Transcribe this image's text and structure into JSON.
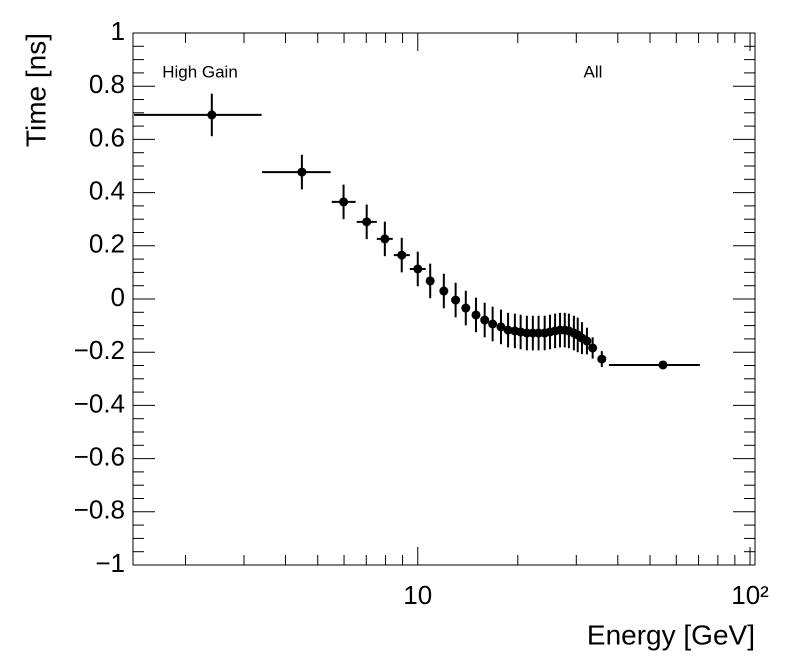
{
  "chart_data": {
    "type": "scatter",
    "xlabel": "Energy [GeV]",
    "ylabel": "Time [ns]",
    "annotations": [
      {
        "text": "High Gain"
      },
      {
        "text": "All"
      }
    ],
    "log_x": true,
    "color": "#000000",
    "x": [
      2.4,
      4.48,
      5.98,
      7.02,
      7.96,
      8.95,
      10.0,
      10.9,
      11.98,
      13.0,
      13.95,
      14.97,
      15.9,
      16.8,
      17.8,
      18.7,
      19.6,
      20.4,
      21.3,
      22.2,
      23.1,
      24.1,
      25.0,
      25.9,
      26.8,
      27.7,
      28.5,
      29.5,
      30.3,
      31.2,
      32.3,
      33.6,
      35.8,
      54.7
    ],
    "x_low": [
      1.4,
      3.4,
      5.51,
      6.55,
      7.53,
      8.47,
      9.46,
      null,
      null,
      null,
      null,
      null,
      null,
      null,
      null,
      null,
      null,
      null,
      null,
      null,
      null,
      null,
      null,
      null,
      null,
      null,
      null,
      null,
      null,
      null,
      null,
      null,
      null,
      37.6
    ],
    "x_high": [
      3.39,
      5.47,
      6.5,
      7.53,
      8.41,
      9.46,
      10.57,
      null,
      null,
      null,
      null,
      null,
      null,
      null,
      null,
      null,
      null,
      null,
      null,
      null,
      null,
      null,
      null,
      null,
      null,
      null,
      null,
      null,
      null,
      null,
      null,
      null,
      null,
      70.6
    ],
    "values": [
      0.692,
      0.477,
      0.365,
      0.29,
      0.226,
      0.165,
      0.113,
      0.068,
      0.03,
      -0.004,
      -0.034,
      -0.06,
      -0.079,
      -0.094,
      -0.105,
      -0.117,
      -0.12,
      -0.124,
      -0.128,
      -0.128,
      -0.128,
      -0.128,
      -0.124,
      -0.12,
      -0.117,
      -0.117,
      -0.12,
      -0.128,
      -0.135,
      -0.147,
      -0.158,
      -0.184,
      -0.226,
      -0.248
    ],
    "yerr": [
      0.08,
      0.065,
      0.065,
      0.065,
      0.065,
      0.065,
      0.065,
      0.065,
      0.065,
      0.065,
      0.065,
      0.065,
      0.065,
      0.065,
      0.065,
      0.065,
      0.065,
      0.065,
      0.065,
      0.065,
      0.065,
      0.065,
      0.065,
      0.065,
      0.065,
      0.065,
      0.065,
      0.065,
      0.065,
      0.06,
      0.05,
      0.04,
      0.03,
      0.01
    ],
    "xlim": [
      1.39,
      103.5
    ],
    "ylim": [
      -1,
      1
    ],
    "xticks": [
      10,
      {
        "value": 100,
        "label": "10²"
      }
    ],
    "xminorticks": [
      2,
      3,
      4,
      5,
      6,
      7,
      8,
      9,
      20,
      30,
      40,
      50,
      60,
      70,
      80,
      90
    ],
    "yticks": [
      {
        "value": -1,
        "label": "−1"
      },
      {
        "value": -0.8,
        "label": "−0.8"
      },
      {
        "value": -0.6,
        "label": "−0.6"
      },
      {
        "value": -0.4,
        "label": "−0.4"
      },
      {
        "value": -0.2,
        "label": "−0.2"
      },
      0,
      0.2,
      0.4,
      0.6,
      0.8,
      1
    ],
    "yminor_per_major": 4
  }
}
